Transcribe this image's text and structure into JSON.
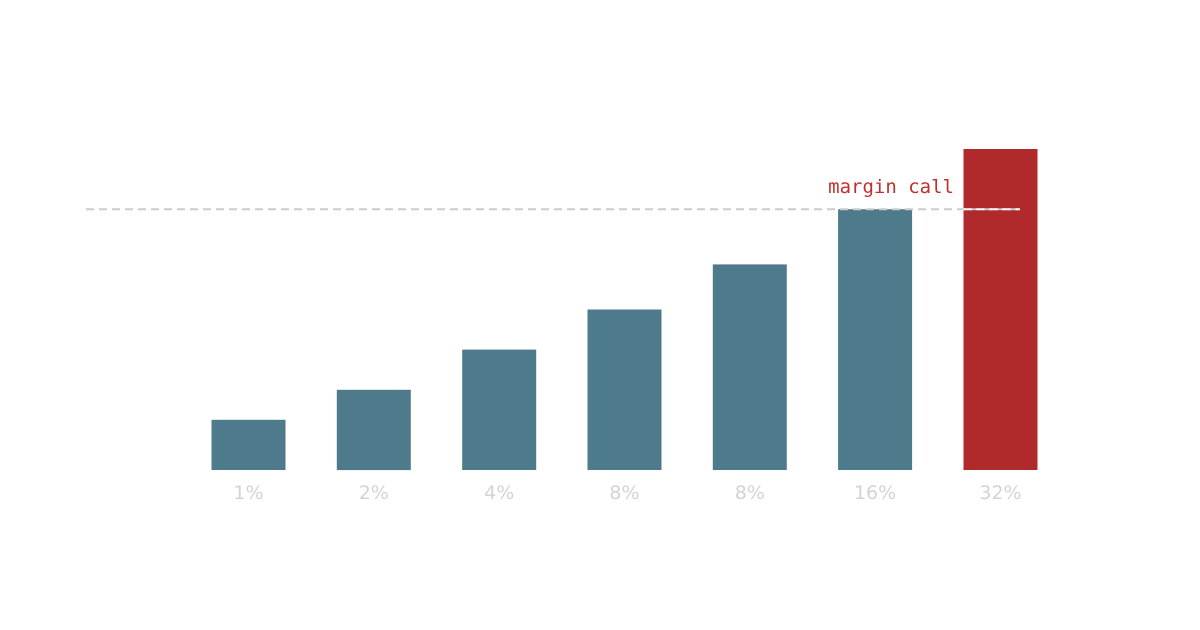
{
  "chart_data": {
    "type": "bar",
    "categories": [
      "1%",
      "2%",
      "4%",
      "8%",
      "8%",
      "16%",
      "32%"
    ],
    "values": [
      1.0,
      1.6,
      2.4,
      3.2,
      4.1,
      5.2,
      6.4
    ],
    "threshold": {
      "label": "margin call",
      "value": 5.2
    },
    "ylim": [
      0,
      6.4
    ],
    "colors": {
      "default_bar": "#4e7b8b",
      "highlight_bar": "#b02a2b",
      "threshold_line_left": "#cccccc",
      "threshold_line_right": "#ffffff",
      "threshold_label": "#c0302e",
      "tick_label": "#d3d3d3"
    },
    "highlight_index": 6,
    "grid": false,
    "legend": "none"
  }
}
